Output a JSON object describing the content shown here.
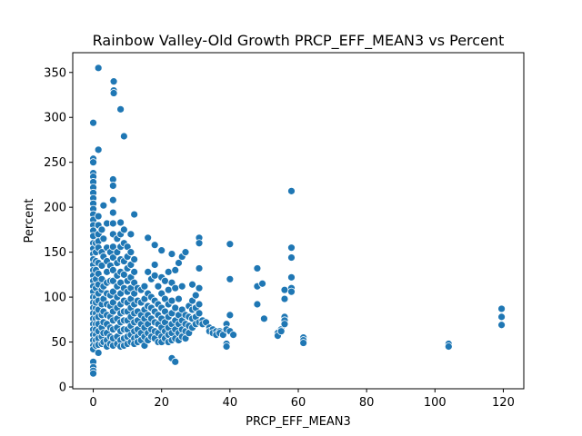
{
  "chart_data": {
    "type": "scatter",
    "title": "Rainbow Valley-Old Growth PRCP_EFF_MEAN3 vs Percent",
    "xlabel": "PRCP_EFF_MEAN3",
    "ylabel": "Percent",
    "xlim": [
      -6,
      126
    ],
    "ylim": [
      -2,
      372
    ],
    "xticks": [
      0,
      20,
      40,
      60,
      80,
      100,
      120
    ],
    "yticks": [
      0,
      50,
      100,
      150,
      200,
      250,
      300,
      350
    ],
    "grid": false,
    "legend": "none",
    "marker_color": "#1f77b4",
    "marker_edge_color": "#ffffff",
    "points": [
      [
        0,
        294
      ],
      [
        0,
        254
      ],
      [
        0,
        250
      ],
      [
        0,
        238
      ],
      [
        0,
        234
      ],
      [
        0,
        228
      ],
      [
        0,
        222
      ],
      [
        0,
        216
      ],
      [
        0,
        210
      ],
      [
        0,
        204
      ],
      [
        0,
        198
      ],
      [
        0,
        192
      ],
      [
        0,
        186
      ],
      [
        0,
        180
      ],
      [
        0,
        174
      ],
      [
        0,
        168
      ],
      [
        0,
        160
      ],
      [
        0,
        154
      ],
      [
        0,
        148
      ],
      [
        0,
        142
      ],
      [
        0,
        136
      ],
      [
        0,
        130
      ],
      [
        0,
        124
      ],
      [
        0,
        118
      ],
      [
        0,
        112
      ],
      [
        0,
        106
      ],
      [
        0,
        100
      ],
      [
        0,
        94
      ],
      [
        0,
        88
      ],
      [
        0,
        82
      ],
      [
        0,
        76
      ],
      [
        0,
        70
      ],
      [
        0,
        64
      ],
      [
        0,
        58
      ],
      [
        0,
        52
      ],
      [
        0,
        46
      ],
      [
        0,
        42
      ],
      [
        0,
        28
      ],
      [
        0,
        22
      ],
      [
        0,
        18
      ],
      [
        0,
        15
      ],
      [
        0.8,
        88
      ],
      [
        0.8,
        82
      ],
      [
        0.8,
        76
      ],
      [
        0.8,
        70
      ],
      [
        0.8,
        64
      ],
      [
        0.8,
        58
      ],
      [
        0.8,
        52
      ],
      [
        0.8,
        46
      ],
      [
        0.8,
        160
      ],
      [
        0.8,
        150
      ],
      [
        0.8,
        140
      ],
      [
        0.8,
        130
      ],
      [
        0.8,
        120
      ],
      [
        0.8,
        110
      ],
      [
        0.8,
        100
      ],
      [
        0.8,
        94
      ],
      [
        1.5,
        355
      ],
      [
        1.5,
        264
      ],
      [
        1.5,
        190
      ],
      [
        1.5,
        180
      ],
      [
        1.5,
        170
      ],
      [
        1.5,
        162
      ],
      [
        1.5,
        155
      ],
      [
        1.5,
        138
      ],
      [
        1.5,
        126
      ],
      [
        1.5,
        114
      ],
      [
        1.5,
        104
      ],
      [
        1.5,
        96
      ],
      [
        1.5,
        86
      ],
      [
        1.5,
        78
      ],
      [
        1.5,
        70
      ],
      [
        1.5,
        62
      ],
      [
        1.5,
        54
      ],
      [
        1.5,
        47
      ],
      [
        1.5,
        38
      ],
      [
        2.5,
        175
      ],
      [
        2.5,
        150
      ],
      [
        2.5,
        135
      ],
      [
        2.5,
        120
      ],
      [
        2.5,
        108
      ],
      [
        2.5,
        92
      ],
      [
        2.5,
        80
      ],
      [
        2.5,
        66
      ],
      [
        2.5,
        56
      ],
      [
        2.5,
        48
      ],
      [
        3,
        202
      ],
      [
        3,
        165
      ],
      [
        3,
        145
      ],
      [
        3,
        112
      ],
      [
        3,
        98
      ],
      [
        3,
        84
      ],
      [
        3,
        72
      ],
      [
        3,
        60
      ],
      [
        3,
        50
      ],
      [
        4,
        182
      ],
      [
        4,
        155
      ],
      [
        4,
        140
      ],
      [
        4,
        128
      ],
      [
        4,
        116
      ],
      [
        4,
        104
      ],
      [
        4,
        92
      ],
      [
        4,
        80
      ],
      [
        4,
        70
      ],
      [
        4,
        60
      ],
      [
        4,
        52
      ],
      [
        4,
        45
      ],
      [
        5,
        150
      ],
      [
        5,
        135
      ],
      [
        5,
        118
      ],
      [
        5,
        102
      ],
      [
        5,
        90
      ],
      [
        5,
        78
      ],
      [
        5,
        66
      ],
      [
        5,
        56
      ],
      [
        5,
        48
      ],
      [
        5.8,
        231
      ],
      [
        5.8,
        224
      ],
      [
        5.8,
        208
      ],
      [
        5.8,
        194
      ],
      [
        5.8,
        182
      ],
      [
        5.8,
        170
      ],
      [
        5.8,
        156
      ],
      [
        5.8,
        144
      ],
      [
        5.8,
        130
      ],
      [
        5.8,
        118
      ],
      [
        5.8,
        106
      ],
      [
        5.8,
        94
      ],
      [
        5.8,
        84
      ],
      [
        5.8,
        74
      ],
      [
        5.8,
        64
      ],
      [
        5.8,
        54
      ],
      [
        5.8,
        46
      ],
      [
        6,
        340
      ],
      [
        6,
        330
      ],
      [
        6,
        327
      ],
      [
        7,
        165
      ],
      [
        7,
        150
      ],
      [
        7,
        138
      ],
      [
        7,
        124
      ],
      [
        7,
        112
      ],
      [
        7,
        100
      ],
      [
        7,
        88
      ],
      [
        7,
        76
      ],
      [
        7,
        66
      ],
      [
        7,
        56
      ],
      [
        7,
        48
      ],
      [
        8,
        309
      ],
      [
        8,
        183
      ],
      [
        8,
        170
      ],
      [
        8,
        156
      ],
      [
        8,
        142
      ],
      [
        8,
        128
      ],
      [
        8,
        116
      ],
      [
        8,
        104
      ],
      [
        8,
        92
      ],
      [
        8,
        82
      ],
      [
        8,
        72
      ],
      [
        8,
        62
      ],
      [
        8,
        52
      ],
      [
        8,
        45
      ],
      [
        9,
        279
      ],
      [
        9,
        175
      ],
      [
        9,
        160
      ],
      [
        9,
        140
      ],
      [
        9,
        125
      ],
      [
        9,
        110
      ],
      [
        9,
        96
      ],
      [
        9,
        84
      ],
      [
        9,
        74
      ],
      [
        9,
        64
      ],
      [
        9,
        54
      ],
      [
        9,
        46
      ],
      [
        10,
        156
      ],
      [
        10,
        145
      ],
      [
        10,
        132
      ],
      [
        10,
        118
      ],
      [
        10,
        106
      ],
      [
        10,
        94
      ],
      [
        10,
        84
      ],
      [
        10,
        74
      ],
      [
        10,
        64
      ],
      [
        10,
        56
      ],
      [
        10,
        48
      ],
      [
        11,
        170
      ],
      [
        11,
        150
      ],
      [
        11,
        136
      ],
      [
        11,
        122
      ],
      [
        11,
        110
      ],
      [
        11,
        98
      ],
      [
        11,
        88
      ],
      [
        11,
        78
      ],
      [
        11,
        68
      ],
      [
        11,
        58
      ],
      [
        11,
        50
      ],
      [
        12,
        192
      ],
      [
        12,
        142
      ],
      [
        12,
        128
      ],
      [
        12,
        116
      ],
      [
        12,
        104
      ],
      [
        12,
        92
      ],
      [
        12,
        82
      ],
      [
        12,
        72
      ],
      [
        12,
        62
      ],
      [
        12,
        54
      ],
      [
        12,
        48
      ],
      [
        13,
        110
      ],
      [
        13,
        96
      ],
      [
        13,
        84
      ],
      [
        13,
        74
      ],
      [
        13,
        64
      ],
      [
        13,
        56
      ],
      [
        13,
        50
      ],
      [
        14,
        108
      ],
      [
        14,
        94
      ],
      [
        14,
        80
      ],
      [
        14,
        70
      ],
      [
        14,
        60
      ],
      [
        14,
        52
      ],
      [
        15,
        112
      ],
      [
        15,
        98
      ],
      [
        15,
        86
      ],
      [
        15,
        76
      ],
      [
        15,
        66
      ],
      [
        15,
        56
      ],
      [
        15,
        46
      ],
      [
        16,
        166
      ],
      [
        16,
        128
      ],
      [
        16,
        104
      ],
      [
        16,
        90
      ],
      [
        16,
        80
      ],
      [
        16,
        70
      ],
      [
        16,
        60
      ],
      [
        16,
        52
      ],
      [
        17,
        120
      ],
      [
        17,
        100
      ],
      [
        17,
        88
      ],
      [
        17,
        76
      ],
      [
        17,
        64
      ],
      [
        17,
        56
      ],
      [
        18,
        158
      ],
      [
        18,
        136
      ],
      [
        18,
        124
      ],
      [
        18,
        96
      ],
      [
        18,
        84
      ],
      [
        18,
        72
      ],
      [
        18,
        62
      ],
      [
        18,
        54
      ],
      [
        19,
        112
      ],
      [
        19,
        92
      ],
      [
        19,
        80
      ],
      [
        19,
        70
      ],
      [
        19,
        60
      ],
      [
        19,
        50
      ],
      [
        20,
        152
      ],
      [
        20,
        122
      ],
      [
        20,
        104
      ],
      [
        20,
        88
      ],
      [
        20,
        76
      ],
      [
        20,
        66
      ],
      [
        20,
        56
      ],
      [
        20,
        50
      ],
      [
        21,
        118
      ],
      [
        21,
        98
      ],
      [
        21,
        84
      ],
      [
        21,
        72
      ],
      [
        21,
        62
      ],
      [
        21,
        54
      ],
      [
        22,
        128
      ],
      [
        22,
        108
      ],
      [
        22,
        92
      ],
      [
        22,
        78
      ],
      [
        22,
        66
      ],
      [
        22,
        58
      ],
      [
        22,
        50
      ],
      [
        23,
        148
      ],
      [
        23,
        116
      ],
      [
        23,
        96
      ],
      [
        23,
        82
      ],
      [
        23,
        70
      ],
      [
        23,
        60
      ],
      [
        23,
        52
      ],
      [
        23,
        32
      ],
      [
        24,
        130
      ],
      [
        24,
        110
      ],
      [
        24,
        88
      ],
      [
        24,
        74
      ],
      [
        24,
        64
      ],
      [
        24,
        54
      ],
      [
        24,
        28
      ],
      [
        25,
        138
      ],
      [
        25,
        98
      ],
      [
        25,
        80
      ],
      [
        25,
        70
      ],
      [
        25,
        60
      ],
      [
        25,
        52
      ],
      [
        26,
        145
      ],
      [
        26,
        112
      ],
      [
        26,
        86
      ],
      [
        26,
        74
      ],
      [
        26,
        64
      ],
      [
        26,
        56
      ],
      [
        27,
        150
      ],
      [
        27,
        80
      ],
      [
        27,
        70
      ],
      [
        27,
        62
      ],
      [
        27,
        54
      ],
      [
        28,
        90
      ],
      [
        28,
        78
      ],
      [
        28,
        68
      ],
      [
        28,
        60
      ],
      [
        29,
        114
      ],
      [
        29,
        96
      ],
      [
        29,
        86
      ],
      [
        29,
        76
      ],
      [
        29,
        66
      ],
      [
        30,
        102
      ],
      [
        30,
        88
      ],
      [
        30,
        78
      ],
      [
        30,
        70
      ],
      [
        31,
        166
      ],
      [
        31,
        160
      ],
      [
        31,
        132
      ],
      [
        31,
        110
      ],
      [
        31,
        92
      ],
      [
        31,
        82
      ],
      [
        31,
        72
      ],
      [
        32,
        74
      ],
      [
        32,
        70
      ],
      [
        33,
        72
      ],
      [
        34,
        66
      ],
      [
        34,
        62
      ],
      [
        35,
        64
      ],
      [
        35,
        60
      ],
      [
        36,
        62
      ],
      [
        36,
        58
      ],
      [
        37,
        62
      ],
      [
        37,
        60
      ],
      [
        38,
        58
      ],
      [
        39,
        48
      ],
      [
        39,
        45
      ],
      [
        39,
        70
      ],
      [
        39,
        64
      ],
      [
        40,
        159
      ],
      [
        40,
        120
      ],
      [
        40,
        80
      ],
      [
        40,
        62
      ],
      [
        41,
        58
      ],
      [
        48,
        132
      ],
      [
        48,
        112
      ],
      [
        48,
        92
      ],
      [
        49.5,
        115
      ],
      [
        50,
        76
      ],
      [
        54,
        60
      ],
      [
        54,
        57
      ],
      [
        55,
        64
      ],
      [
        55,
        62
      ],
      [
        56,
        108
      ],
      [
        56,
        98
      ],
      [
        56,
        78
      ],
      [
        56,
        74
      ],
      [
        56,
        70
      ],
      [
        58,
        218
      ],
      [
        58,
        155
      ],
      [
        58,
        144
      ],
      [
        58,
        122
      ],
      [
        58,
        110
      ],
      [
        58,
        106
      ],
      [
        61.5,
        55
      ],
      [
        61.5,
        52
      ],
      [
        61.5,
        49
      ],
      [
        104,
        48
      ],
      [
        104,
        45
      ],
      [
        119.5,
        87
      ],
      [
        119.5,
        78
      ],
      [
        119.5,
        69
      ]
    ]
  }
}
